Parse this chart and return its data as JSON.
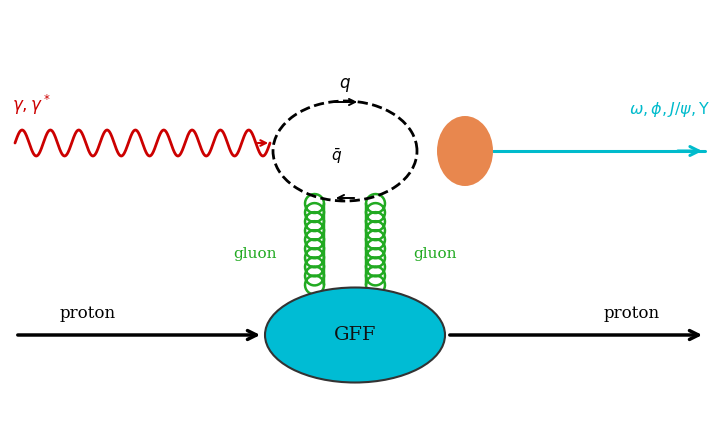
{
  "bg_color": "#ffffff",
  "photon_color": "#cc0000",
  "gluon_color": "#22aa22",
  "meson_color": "#00bbcc",
  "proton_line_color": "#000000",
  "gff_color": "#00bcd4",
  "meson_blob_color": "#e8874e",
  "photon_label": "$\\gamma, \\gamma^*$",
  "meson_label": "$\\omega, \\phi, J/\\psi, \\Upsilon$",
  "q_label": "$q$",
  "qbar_label": "$\\bar{q}$",
  "gluon_label_left": "gluon",
  "gluon_label_right": "gluon",
  "proton_label_left": "proton",
  "proton_label_right": "proton",
  "gff_label": "GFF",
  "figsize": [
    7.2,
    4.23
  ],
  "dpi": 100
}
